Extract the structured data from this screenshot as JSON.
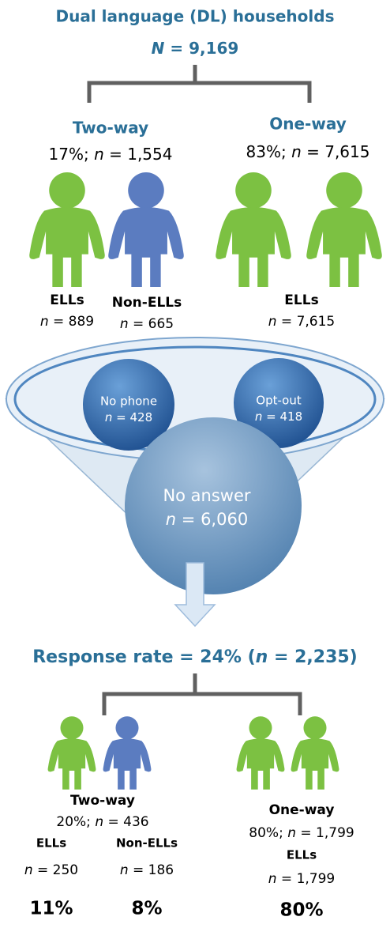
{
  "header": {
    "title": "Dual language (DL) households",
    "total": {
      "var": "N",
      "rest": "= 9,169"
    }
  },
  "groups": [
    {
      "name": "Two-way",
      "share": "17%;",
      "n": {
        "var": "n",
        "rest": "= 1,554"
      },
      "subgroups": [
        {
          "label": "ELLs",
          "n": {
            "var": "n",
            "rest": "= 889"
          }
        },
        {
          "label": "Non-ELLs",
          "n": {
            "var": "n",
            "rest": "= 665"
          }
        }
      ]
    },
    {
      "name": "One-way",
      "share": "83%;",
      "n": {
        "var": "n",
        "rest": "= 7,615"
      },
      "subgroups": [
        {
          "label": "ELLs",
          "n": {
            "var": "n",
            "rest": "= 7,615"
          }
        }
      ]
    }
  ],
  "funnel": [
    {
      "label": "No phone",
      "n": {
        "var": "n",
        "rest": "= 428"
      }
    },
    {
      "label": "Opt-out",
      "n": {
        "var": "n",
        "rest": "= 418"
      }
    },
    {
      "label": "No answer",
      "n": {
        "var": "n",
        "rest": "= 6,060"
      }
    }
  ],
  "response": {
    "prefix": "Response rate = 24% (",
    "var": "n",
    "rest": "= 2,235)"
  },
  "respondents": [
    {
      "name": "Two-way",
      "share": "20%;",
      "n": {
        "var": "n",
        "rest": "= 436"
      },
      "subgroups": [
        {
          "label": "ELLs",
          "n": {
            "var": "n",
            "rest": "= 250"
          },
          "percent": "11%"
        },
        {
          "label": "Non-ELLs",
          "n": {
            "var": "n",
            "rest": "= 186"
          },
          "percent": "8%"
        }
      ]
    },
    {
      "name": "One-way",
      "share": "80%;",
      "n": {
        "var": "n",
        "rest": "= 1,799"
      },
      "subgroups": [
        {
          "label": "ELLs",
          "n": {
            "var": "n",
            "rest": "= 1,799"
          },
          "percent": "80%"
        }
      ]
    }
  ]
}
